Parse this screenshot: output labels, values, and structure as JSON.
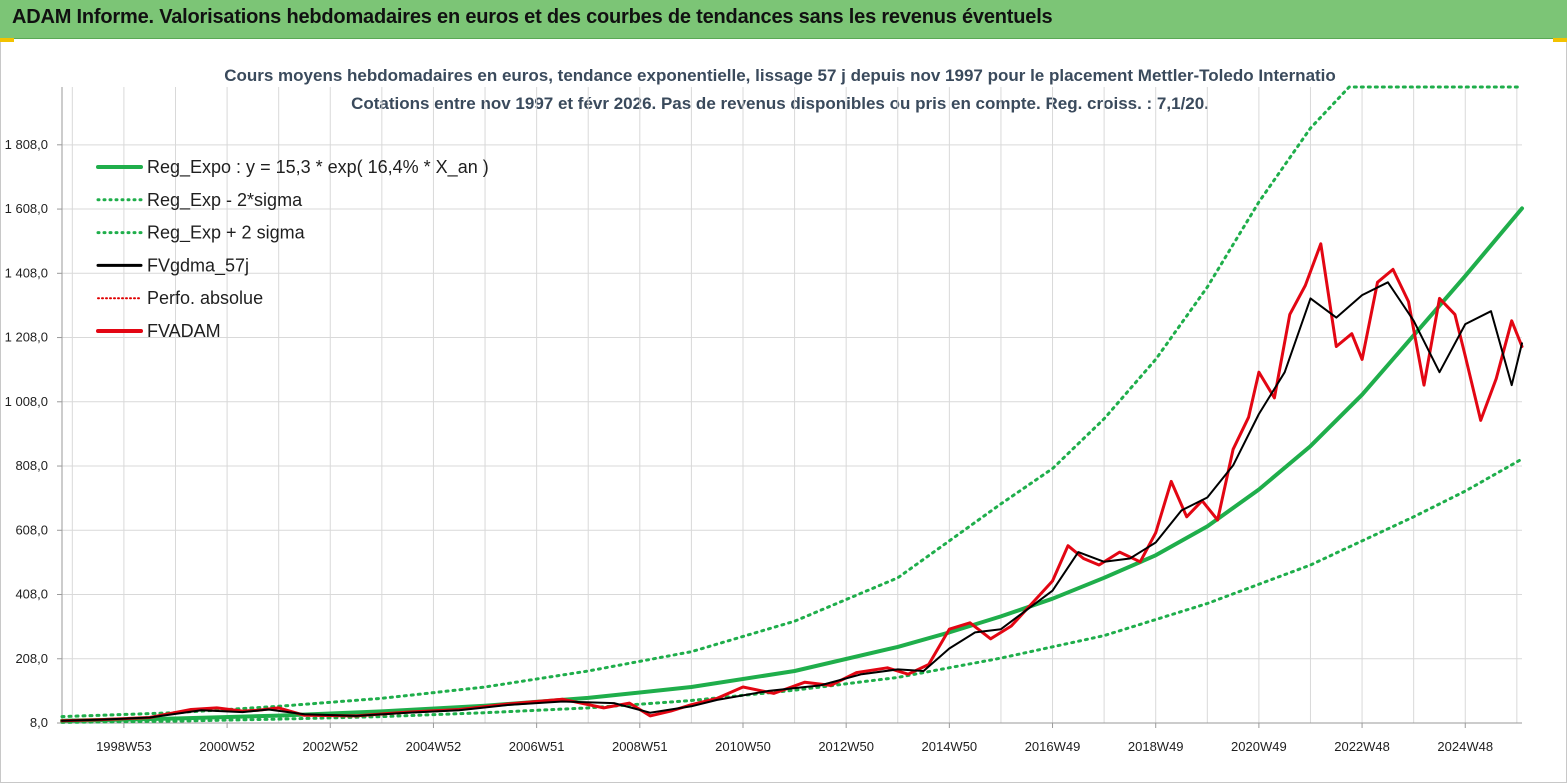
{
  "header": {
    "title": "ADAM Informe. Valorisations hebdomadaires en euros et des courbes de tendances sans les revenus éventuels"
  },
  "colors": {
    "header_bg": "#7cc576",
    "reg_expo": "#1fae4b",
    "sigma": "#1fae4b",
    "fvgdma": "#000000",
    "perfo": "#e00000",
    "fvadam": "#e30613",
    "grid": "#d9d9d9"
  },
  "chart_data": {
    "type": "line",
    "title_line1": "Cours moyens hebdomadaires en euros, tendance exponentielle, lissage 57 j depuis nov 1997 pour le placement Mettler-Toledo Internatio",
    "title_line2": "Cotations entre nov 1997 et févr 2026. Pas de revenus disponibles ou pris en compte. Reg. croiss. : 7,1/20.",
    "xlabel": "",
    "ylabel": "",
    "x_range": [
      1997.8,
      2026.1
    ],
    "ylim": [
      8.0,
      1988.0
    ],
    "y_ticks": [
      "8,0",
      "208,0",
      "408,0",
      "608,0",
      "808,0",
      "1 008,0",
      "1 208,0",
      "1 408,0",
      "1 608,0",
      "1 808,0"
    ],
    "x_ticks": [
      {
        "label": "1998W53",
        "x": 1999.0
      },
      {
        "label": "2000W52",
        "x": 2001.0
      },
      {
        "label": "2002W52",
        "x": 2003.0
      },
      {
        "label": "2004W52",
        "x": 2005.0
      },
      {
        "label": "2006W51",
        "x": 2007.0
      },
      {
        "label": "2008W51",
        "x": 2009.0
      },
      {
        "label": "2010W50",
        "x": 2011.0
      },
      {
        "label": "2012W50",
        "x": 2013.0
      },
      {
        "label": "2014W50",
        "x": 2015.0
      },
      {
        "label": "2016W49",
        "x": 2017.0
      },
      {
        "label": "2018W49",
        "x": 2019.0
      },
      {
        "label": "2020W49",
        "x": 2021.0
      },
      {
        "label": "2022W48",
        "x": 2023.0
      },
      {
        "label": "2024W48",
        "x": 2025.0
      }
    ],
    "grid": true,
    "legend_position": "top-left",
    "legend": [
      {
        "label": "Reg_Expo : y = 15,3 * exp( 16,4% *  X_an )",
        "style": "solid-thick",
        "color": "#1fae4b"
      },
      {
        "label": "Reg_Exp - 2*sigma",
        "style": "dotted",
        "color": "#1fae4b"
      },
      {
        "label": "Reg_Exp + 2 sigma",
        "style": "dotted",
        "color": "#1fae4b"
      },
      {
        "label": "FVgdma_57j",
        "style": "solid",
        "color": "#000000"
      },
      {
        "label": "Perfo. absolue",
        "style": "dotted-thin",
        "color": "#e00000"
      },
      {
        "label": "FVADAM",
        "style": "solid-thick",
        "color": "#e30613"
      }
    ],
    "series": [
      {
        "name": "Reg_Expo : y = 15,3 * exp( 16,4% *  X_an )",
        "x": [
          1997.8,
          2000.0,
          2002.0,
          2004.0,
          2006.0,
          2008.0,
          2010.0,
          2012.0,
          2014.0,
          2015.0,
          2016.0,
          2017.0,
          2018.0,
          2019.0,
          2020.0,
          2021.0,
          2022.0,
          2023.0,
          2024.0,
          2025.0,
          2026.1
        ],
        "y": [
          15,
          22,
          31,
          44,
          62,
          86,
          120,
          170,
          245,
          290,
          340,
          395,
          460,
          530,
          620,
          735,
          870,
          1030,
          1215,
          1400,
          1610
        ]
      },
      {
        "name": "Reg_Exp - 2*sigma",
        "x": [
          1997.8,
          2000.0,
          2002.0,
          2004.0,
          2006.0,
          2008.0,
          2010.0,
          2012.0,
          2014.0,
          2016.0,
          2018.0,
          2020.0,
          2022.0,
          2024.0,
          2025.0,
          2026.1
        ],
        "y": [
          10,
          14,
          20,
          28,
          40,
          55,
          78,
          110,
          150,
          210,
          280,
          380,
          500,
          650,
          730,
          830
        ]
      },
      {
        "name": "Reg_Exp + 2 sigma",
        "x": [
          1997.8,
          2000.0,
          2002.0,
          2004.0,
          2006.0,
          2008.0,
          2010.0,
          2012.0,
          2014.0,
          2016.0,
          2017.0,
          2018.0,
          2019.0,
          2020.0,
          2021.0,
          2022.0,
          2022.75,
          2023.0,
          2024.0,
          2026.1
        ],
        "y": [
          28,
          40,
          60,
          85,
          120,
          170,
          230,
          325,
          460,
          690,
          800,
          955,
          1140,
          1365,
          1630,
          1860,
          1988,
          1988,
          1988,
          1988
        ]
      },
      {
        "name": "FVgdma_57j",
        "x": [
          1997.8,
          1998.5,
          1999.5,
          2000.5,
          2001.3,
          2001.8,
          2002.5,
          2003.5,
          2004.5,
          2005.5,
          2006.5,
          2007.5,
          2008.5,
          2009.2,
          2010.0,
          2010.5,
          2011.5,
          2012.5,
          2013.3,
          2014.0,
          2014.5,
          2015.0,
          2015.5,
          2016.0,
          2016.5,
          2017.0,
          2017.5,
          2018.0,
          2018.5,
          2019.0,
          2019.5,
          2020.0,
          2020.5,
          2021.0,
          2021.5,
          2022.0,
          2022.5,
          2023.0,
          2023.5,
          2024.0,
          2024.5,
          2025.0,
          2025.5,
          2025.9,
          2026.1
        ],
        "y": [
          15,
          18,
          25,
          48,
          42,
          50,
          35,
          30,
          40,
          48,
          65,
          75,
          70,
          40,
          60,
          80,
          108,
          125,
          160,
          175,
          170,
          240,
          290,
          300,
          360,
          420,
          540,
          510,
          520,
          570,
          670,
          710,
          810,
          970,
          1100,
          1330,
          1270,
          1340,
          1380,
          1260,
          1100,
          1250,
          1290,
          1060,
          1190
        ]
      },
      {
        "name": "FVADAM",
        "x": [
          1997.8,
          1998.5,
          1999.5,
          2000.3,
          2000.8,
          2001.3,
          2001.6,
          2002.0,
          2002.5,
          2003.5,
          2004.5,
          2005.5,
          2006.5,
          2007.5,
          2008.3,
          2008.8,
          2009.2,
          2009.6,
          2010.0,
          2010.5,
          2011.0,
          2011.6,
          2012.2,
          2012.7,
          2013.2,
          2013.8,
          2014.2,
          2014.6,
          2015.0,
          2015.4,
          2015.8,
          2016.2,
          2016.6,
          2017.0,
          2017.3,
          2017.6,
          2017.9,
          2018.3,
          2018.7,
          2019.0,
          2019.3,
          2019.6,
          2019.9,
          2020.2,
          2020.5,
          2020.8,
          2021.0,
          2021.3,
          2021.6,
          2021.9,
          2022.2,
          2022.5,
          2022.8,
          2023.0,
          2023.3,
          2023.6,
          2023.9,
          2024.2,
          2024.5,
          2024.8,
          2025.0,
          2025.3,
          2025.6,
          2025.9,
          2026.1
        ],
        "y": [
          15,
          18,
          25,
          50,
          55,
          45,
          48,
          55,
          32,
          30,
          42,
          50,
          68,
          82,
          55,
          70,
          30,
          45,
          65,
          85,
          120,
          100,
          135,
          125,
          165,
          180,
          160,
          190,
          300,
          320,
          270,
          310,
          380,
          450,
          560,
          520,
          500,
          540,
          510,
          600,
          760,
          650,
          700,
          640,
          860,
          960,
          1100,
          1020,
          1280,
          1370,
          1500,
          1180,
          1220,
          1140,
          1380,
          1420,
          1320,
          1060,
          1330,
          1280,
          1150,
          950,
          1080,
          1260,
          1180
        ]
      }
    ]
  }
}
